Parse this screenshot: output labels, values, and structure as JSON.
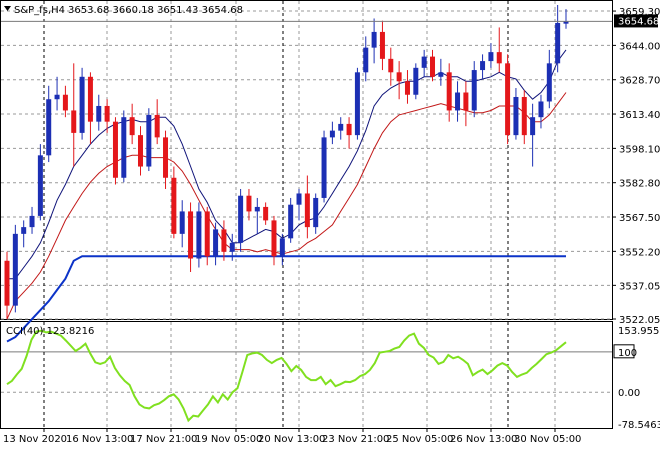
{
  "header": {
    "symbol_timeframe": "S&P_fs,H4",
    "ohlc": "3653.68 3660.18 3651.43 3654.68"
  },
  "price_panel": {
    "y_ticks": [
      "3659.30",
      "3644.00",
      "3628.70",
      "3613.40",
      "3598.10",
      "3582.80",
      "3567.50",
      "3552.20",
      "3537.05",
      "3522.05"
    ],
    "current_price_label": "3654.68"
  },
  "cci_panel": {
    "title": "CCI(40) 123.8216",
    "y_ticks": [
      "153.9559",
      "100",
      "0.00",
      "-78.5463"
    ]
  },
  "x_axis": {
    "labels": [
      "13 Nov 2020",
      "16 Nov 13:00",
      "17 Nov 21:00",
      "19 Nov 05:00",
      "20 Nov 13:00",
      "23 Nov 21:00",
      "25 Nov 05:00",
      "26 Nov 13:00",
      "30 Nov 05:00"
    ]
  },
  "colors": {
    "bull": "#1c2fb4",
    "bear": "#e4171b",
    "fast_ma": "#10147a",
    "slow_ma": "#c21818",
    "stop_line": "#0c33c8",
    "cci_line": "#80e020",
    "grid": "#9a9a9a"
  },
  "chart_data": [
    {
      "type": "candlestick",
      "title": "S&P_fs,H4",
      "ylim": [
        3522.05,
        3662.0
      ],
      "candles": [
        {
          "o": 3548,
          "h": 3552,
          "l": 3522,
          "c": 3528
        },
        {
          "o": 3528,
          "h": 3564,
          "l": 3525,
          "c": 3560
        },
        {
          "o": 3560,
          "h": 3566,
          "l": 3554,
          "c": 3563
        },
        {
          "o": 3563,
          "h": 3572,
          "l": 3560,
          "c": 3568
        },
        {
          "o": 3568,
          "h": 3600,
          "l": 3566,
          "c": 3595
        },
        {
          "o": 3595,
          "h": 3626,
          "l": 3592,
          "c": 3620
        },
        {
          "o": 3620,
          "h": 3630,
          "l": 3615,
          "c": 3622
        },
        {
          "o": 3622,
          "h": 3626,
          "l": 3612,
          "c": 3615
        },
        {
          "o": 3615,
          "h": 3636,
          "l": 3590,
          "c": 3605
        },
        {
          "o": 3605,
          "h": 3634,
          "l": 3602,
          "c": 3630
        },
        {
          "o": 3630,
          "h": 3632,
          "l": 3600,
          "c": 3610
        },
        {
          "o": 3610,
          "h": 3622,
          "l": 3606,
          "c": 3617
        },
        {
          "o": 3617,
          "h": 3620,
          "l": 3605,
          "c": 3610
        },
        {
          "o": 3610,
          "h": 3612,
          "l": 3582,
          "c": 3585
        },
        {
          "o": 3585,
          "h": 3615,
          "l": 3583,
          "c": 3612
        },
        {
          "o": 3612,
          "h": 3618,
          "l": 3600,
          "c": 3604
        },
        {
          "o": 3604,
          "h": 3608,
          "l": 3586,
          "c": 3590
        },
        {
          "o": 3590,
          "h": 3616,
          "l": 3588,
          "c": 3613
        },
        {
          "o": 3613,
          "h": 3620,
          "l": 3600,
          "c": 3603
        },
        {
          "o": 3603,
          "h": 3606,
          "l": 3580,
          "c": 3585
        },
        {
          "o": 3585,
          "h": 3590,
          "l": 3558,
          "c": 3560
        },
        {
          "o": 3560,
          "h": 3575,
          "l": 3554,
          "c": 3570
        },
        {
          "o": 3570,
          "h": 3574,
          "l": 3543,
          "c": 3549
        },
        {
          "o": 3549,
          "h": 3574,
          "l": 3545,
          "c": 3570
        },
        {
          "o": 3570,
          "h": 3572,
          "l": 3546,
          "c": 3550
        },
        {
          "o": 3550,
          "h": 3565,
          "l": 3546,
          "c": 3562
        },
        {
          "o": 3562,
          "h": 3566,
          "l": 3548,
          "c": 3552
        },
        {
          "o": 3552,
          "h": 3560,
          "l": 3548,
          "c": 3556
        },
        {
          "o": 3556,
          "h": 3580,
          "l": 3552,
          "c": 3577
        },
        {
          "o": 3577,
          "h": 3580,
          "l": 3566,
          "c": 3570
        },
        {
          "o": 3570,
          "h": 3576,
          "l": 3560,
          "c": 3572
        },
        {
          "o": 3572,
          "h": 3574,
          "l": 3564,
          "c": 3566
        },
        {
          "o": 3566,
          "h": 3568,
          "l": 3546,
          "c": 3550
        },
        {
          "o": 3550,
          "h": 3560,
          "l": 3546,
          "c": 3558
        },
        {
          "o": 3558,
          "h": 3576,
          "l": 3556,
          "c": 3573
        },
        {
          "o": 3573,
          "h": 3580,
          "l": 3566,
          "c": 3578
        },
        {
          "o": 3578,
          "h": 3586,
          "l": 3558,
          "c": 3563
        },
        {
          "o": 3563,
          "h": 3578,
          "l": 3560,
          "c": 3576
        },
        {
          "o": 3576,
          "h": 3606,
          "l": 3574,
          "c": 3603
        },
        {
          "o": 3603,
          "h": 3610,
          "l": 3600,
          "c": 3606
        },
        {
          "o": 3606,
          "h": 3612,
          "l": 3602,
          "c": 3609
        },
        {
          "o": 3609,
          "h": 3612,
          "l": 3598,
          "c": 3604
        },
        {
          "o": 3604,
          "h": 3634,
          "l": 3602,
          "c": 3632
        },
        {
          "o": 3632,
          "h": 3648,
          "l": 3628,
          "c": 3643
        },
        {
          "o": 3643,
          "h": 3656,
          "l": 3636,
          "c": 3650
        },
        {
          "o": 3650,
          "h": 3655,
          "l": 3633,
          "c": 3638
        },
        {
          "o": 3638,
          "h": 3643,
          "l": 3626,
          "c": 3632
        },
        {
          "o": 3632,
          "h": 3637,
          "l": 3620,
          "c": 3628
        },
        {
          "o": 3628,
          "h": 3633,
          "l": 3618,
          "c": 3622
        },
        {
          "o": 3622,
          "h": 3636,
          "l": 3620,
          "c": 3634
        },
        {
          "o": 3634,
          "h": 3642,
          "l": 3630,
          "c": 3639
        },
        {
          "o": 3639,
          "h": 3642,
          "l": 3628,
          "c": 3630
        },
        {
          "o": 3630,
          "h": 3638,
          "l": 3626,
          "c": 3632
        },
        {
          "o": 3632,
          "h": 3636,
          "l": 3610,
          "c": 3615
        },
        {
          "o": 3615,
          "h": 3628,
          "l": 3610,
          "c": 3623
        },
        {
          "o": 3623,
          "h": 3628,
          "l": 3608,
          "c": 3615
        },
        {
          "o": 3615,
          "h": 3637,
          "l": 3612,
          "c": 3633
        },
        {
          "o": 3633,
          "h": 3640,
          "l": 3629,
          "c": 3637
        },
        {
          "o": 3637,
          "h": 3645,
          "l": 3634,
          "c": 3641
        },
        {
          "o": 3641,
          "h": 3652,
          "l": 3632,
          "c": 3636
        },
        {
          "o": 3636,
          "h": 3640,
          "l": 3600,
          "c": 3604
        },
        {
          "o": 3604,
          "h": 3625,
          "l": 3602,
          "c": 3621
        },
        {
          "o": 3621,
          "h": 3624,
          "l": 3600,
          "c": 3604
        },
        {
          "o": 3604,
          "h": 3618,
          "l": 3590,
          "c": 3612
        },
        {
          "o": 3612,
          "h": 3622,
          "l": 3607,
          "c": 3619
        },
        {
          "o": 3619,
          "h": 3642,
          "l": 3616,
          "c": 3636
        },
        {
          "o": 3636,
          "h": 3662,
          "l": 3632,
          "c": 3654
        },
        {
          "o": 3653.68,
          "h": 3660.18,
          "l": 3651.43,
          "c": 3654.68
        }
      ],
      "fast_ma": [
        3540,
        3540,
        3545,
        3550,
        3556,
        3565,
        3575,
        3582,
        3590,
        3595,
        3600,
        3604,
        3607,
        3609,
        3610,
        3611,
        3610,
        3610,
        3612,
        3612,
        3608,
        3600,
        3590,
        3580,
        3574,
        3566,
        3562,
        3556,
        3556,
        3558,
        3560,
        3562,
        3561,
        3558,
        3560,
        3564,
        3566,
        3567,
        3572,
        3578,
        3584,
        3590,
        3597,
        3606,
        3617,
        3622,
        3625,
        3627,
        3628,
        3628,
        3630,
        3630,
        3632,
        3630,
        3630,
        3628,
        3628,
        3629,
        3630,
        3632,
        3630,
        3629,
        3624,
        3620,
        3623,
        3628,
        3637,
        3642
      ],
      "slow_ma": [
        3522,
        3530,
        3534,
        3538,
        3543,
        3550,
        3558,
        3566,
        3572,
        3578,
        3583,
        3587,
        3590,
        3592,
        3594,
        3595,
        3595,
        3594,
        3594,
        3594,
        3592,
        3588,
        3582,
        3575,
        3568,
        3562,
        3556,
        3553,
        3553,
        3553,
        3552,
        3553,
        3552,
        3551,
        3552,
        3553,
        3556,
        3558,
        3561,
        3564,
        3570,
        3576,
        3582,
        3590,
        3598,
        3605,
        3610,
        3613,
        3614,
        3615,
        3616,
        3617,
        3618,
        3617,
        3616,
        3615,
        3614,
        3614,
        3615,
        3617,
        3617,
        3617,
        3614,
        3610,
        3610,
        3613,
        3618,
        3623
      ],
      "stop_line": [
        3512,
        3514,
        3518,
        3522,
        3526,
        3530,
        3535,
        3540,
        3548,
        3550,
        3550,
        3550,
        3550,
        3550,
        3550,
        3550,
        3550,
        3550,
        3550,
        3550,
        3550,
        3550,
        3550,
        3550,
        3550,
        3550,
        3550,
        3550,
        3550,
        3550,
        3550,
        3550,
        3550,
        3550,
        3550,
        3550,
        3550,
        3550,
        3550,
        3550,
        3550,
        3550,
        3550,
        3550,
        3550,
        3550,
        3550,
        3550,
        3550,
        3550,
        3550,
        3550,
        3550,
        3550,
        3550,
        3550,
        3550,
        3550,
        3550,
        3550,
        3550,
        3550,
        3550,
        3550,
        3550,
        3550,
        3550,
        3550
      ],
      "last_price": 3654.68
    },
    {
      "type": "line",
      "title": "CCI(40) 123.8216",
      "ylim": [
        -78.5463,
        153.9559
      ],
      "values": [
        20,
        28,
        44,
        58,
        90,
        130,
        150,
        152,
        148,
        150,
        145,
        140,
        128,
        115,
        102,
        110,
        120,
        95,
        74,
        70,
        74,
        88,
        60,
        42,
        28,
        18,
        -10,
        -30,
        -38,
        -40,
        -32,
        -28,
        -20,
        -10,
        -5,
        -18,
        -40,
        -70,
        -58,
        -60,
        -45,
        -30,
        -10,
        -25,
        -5,
        -18,
        0,
        10,
        50,
        92,
        96,
        98,
        92,
        80,
        72,
        80,
        85,
        70,
        52,
        65,
        55,
        38,
        30,
        30,
        38,
        20,
        30,
        15,
        20,
        26,
        25,
        30,
        40,
        45,
        55,
        72,
        98,
        100,
        102,
        108,
        112,
        128,
        140,
        145,
        120,
        110,
        92,
        86,
        70,
        75,
        92,
        84,
        88,
        80,
        70,
        42,
        50,
        56,
        45,
        54,
        66,
        72,
        66,
        50,
        38,
        44,
        48,
        60,
        70,
        82,
        94,
        98,
        104,
        114,
        123.8216
      ],
      "marker_value": 100
    }
  ]
}
